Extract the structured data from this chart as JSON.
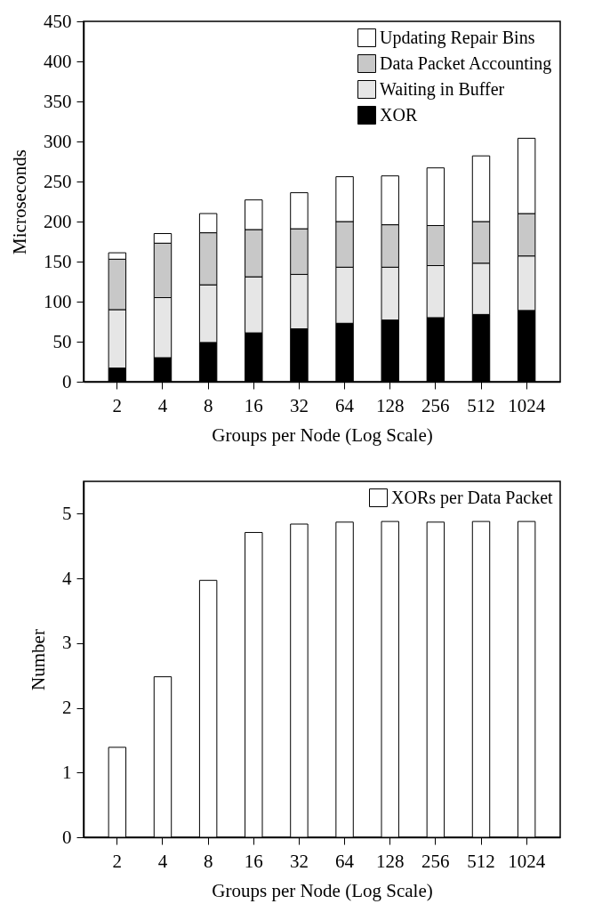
{
  "chart_data": [
    {
      "type": "bar",
      "stacked": true,
      "xlabel": "Groups per Node (Log Scale)",
      "ylabel": "Microseconds",
      "categories": [
        "2",
        "4",
        "8",
        "16",
        "32",
        "64",
        "128",
        "256",
        "512",
        "1024"
      ],
      "ylim": [
        0,
        450
      ],
      "yticks": [
        0,
        50,
        100,
        150,
        200,
        250,
        300,
        350,
        400,
        450
      ],
      "grid": false,
      "legend": "top right",
      "series": [
        {
          "name": "XOR",
          "color": "#000000",
          "values": [
            17,
            30,
            49,
            61,
            66,
            73,
            77,
            80,
            84,
            89
          ]
        },
        {
          "name": "Waiting in Buffer",
          "color": "#e6e6e6",
          "values": [
            73,
            75,
            72,
            70,
            68,
            70,
            66,
            65,
            64,
            68
          ]
        },
        {
          "name": "Data Packet Accounting",
          "color": "#c8c8c8",
          "values": [
            63,
            68,
            65,
            59,
            57,
            57,
            53,
            50,
            52,
            53
          ]
        },
        {
          "name": "Updating Repair Bins",
          "color": "#ffffff",
          "values": [
            8,
            12,
            24,
            37,
            45,
            56,
            61,
            72,
            82,
            94
          ]
        }
      ]
    },
    {
      "type": "bar",
      "xlabel": "Groups per Node (Log Scale)",
      "ylabel": "Number",
      "categories": [
        "2",
        "4",
        "8",
        "16",
        "32",
        "64",
        "128",
        "256",
        "512",
        "1024"
      ],
      "ylim": [
        0,
        5.5
      ],
      "yticks": [
        0,
        1,
        2,
        3,
        4,
        5
      ],
      "grid": false,
      "legend": "top right",
      "series": [
        {
          "name": "XORs per Data Packet",
          "color": "#ffffff",
          "values": [
            1.39,
            2.48,
            3.97,
            4.71,
            4.84,
            4.87,
            4.88,
            4.87,
            4.88,
            4.88
          ]
        }
      ]
    }
  ]
}
